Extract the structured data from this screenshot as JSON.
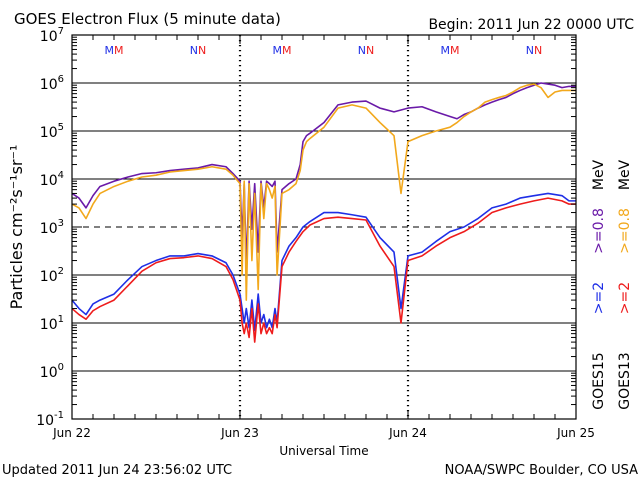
{
  "chart_data": {
    "type": "line",
    "title": "GOES Electron Flux (5 minute data)",
    "begin": "Begin: 2011 Jun 22 0000 UTC",
    "xlabel": "Universal Time",
    "ylabel": "Particles cm⁻²s⁻¹sr⁻¹",
    "yscale": "log",
    "ylim": [
      0.1,
      10000000
    ],
    "y_ticks": [
      {
        "value": 0.1,
        "base": "10",
        "exp": "-1"
      },
      {
        "value": 1,
        "base": "10",
        "exp": "0"
      },
      {
        "value": 10,
        "base": "10",
        "exp": "1"
      },
      {
        "value": 100,
        "base": "10",
        "exp": "2"
      },
      {
        "value": 1000,
        "base": "10",
        "exp": "3"
      },
      {
        "value": 10000,
        "base": "10",
        "exp": "4"
      },
      {
        "value": 100000,
        "base": "10",
        "exp": "5"
      },
      {
        "value": 1000000,
        "base": "10",
        "exp": "6"
      },
      {
        "value": 10000000,
        "base": "10",
        "exp": "7"
      }
    ],
    "xlim": [
      "2011-06-22 00:00",
      "2011-06-25 00:00"
    ],
    "x_ticks": [
      {
        "t": "2011-06-22 00:00",
        "label": "Jun 22"
      },
      {
        "t": "2011-06-23 00:00",
        "label": "Jun 23"
      },
      {
        "t": "2011-06-24 00:00",
        "label": "Jun 24"
      },
      {
        "t": "2011-06-25 00:00",
        "label": "Jun 25"
      }
    ],
    "threshold_line": 1000,
    "markers": [
      {
        "t": "2011-06-22 06:00",
        "label": "MM"
      },
      {
        "t": "2011-06-22 18:00",
        "label": "NN"
      },
      {
        "t": "2011-06-23 06:00",
        "label": "MM"
      },
      {
        "t": "2011-06-23 18:00",
        "label": "NN"
      },
      {
        "t": "2011-06-24 06:00",
        "label": "MM"
      },
      {
        "t": "2011-06-24 18:00",
        "label": "NN"
      }
    ],
    "legend": {
      "unit": "MeV",
      "labels": [
        ">=2",
        ">=2",
        ">=0.8",
        ">=0.8"
      ],
      "satellites": [
        "GOES15",
        "GOES13"
      ]
    },
    "colors": {
      "goes15_ge2": "#1f2fe6",
      "goes13_ge2": "#ee1c1c",
      "goes15_ge08": "#6a1aa8",
      "goes13_ge08": "#f2a81c",
      "marker_blue": "#1f2fe6",
      "marker_red": "#ee1c1c"
    },
    "series": [
      {
        "key": "goes15_ge08",
        "hours": [
          0,
          1,
          2,
          3,
          4,
          6,
          8,
          10,
          12,
          14,
          16,
          18,
          20,
          22,
          23,
          24,
          24.3,
          24.6,
          24.9,
          25.3,
          25.7,
          26.1,
          26.6,
          27,
          27.4,
          27.8,
          28.2,
          28.6,
          29,
          29.3,
          30,
          31,
          32,
          32.6,
          33,
          33.5,
          34,
          36,
          38,
          40,
          42,
          44,
          46,
          48,
          50,
          52,
          54,
          55,
          56,
          57,
          58,
          59,
          60,
          61,
          62,
          63,
          64,
          65,
          66,
          67,
          68,
          69,
          70,
          71,
          72
        ],
        "values": [
          5000,
          4000,
          2500,
          4500,
          7000,
          9000,
          11000,
          13000,
          13500,
          15000,
          16000,
          17000,
          20000,
          18000,
          13000,
          9000,
          600,
          8000,
          150,
          9000,
          900,
          8000,
          300,
          9000,
          2500,
          9000,
          8000,
          7000,
          9000,
          300,
          6000,
          8000,
          10000,
          20000,
          60000,
          80000,
          90000,
          150000,
          350000,
          400000,
          420000,
          300000,
          250000,
          300000,
          320000,
          250000,
          200000,
          180000,
          220000,
          250000,
          300000,
          350000,
          400000,
          450000,
          500000,
          600000,
          700000,
          800000,
          900000,
          1000000,
          950000,
          900000,
          800000,
          850000,
          850000
        ]
      },
      {
        "key": "goes13_ge08",
        "hours": [
          0,
          1,
          2,
          3,
          4,
          6,
          8,
          10,
          12,
          14,
          16,
          18,
          20,
          22,
          23,
          24,
          24.3,
          24.6,
          24.9,
          25.3,
          25.7,
          26.1,
          26.6,
          27,
          27.4,
          27.8,
          28.2,
          28.6,
          29,
          29.3,
          30,
          31,
          32,
          32.6,
          33,
          33.5,
          34,
          36,
          38,
          40,
          42,
          44,
          46,
          47,
          48,
          50,
          52,
          54,
          55,
          56,
          57,
          58,
          59,
          60,
          61,
          62,
          63,
          64,
          65,
          66,
          67,
          68,
          69,
          70,
          71,
          72
        ],
        "values": [
          3000,
          2500,
          1500,
          3000,
          5000,
          7000,
          9000,
          11000,
          12000,
          14000,
          15000,
          16000,
          18000,
          16000,
          12000,
          8000,
          100,
          9000,
          30,
          8000,
          200,
          5000,
          50,
          8000,
          1500,
          8000,
          6000,
          4000,
          7000,
          100,
          5000,
          6000,
          8000,
          15000,
          40000,
          60000,
          70000,
          120000,
          300000,
          350000,
          300000,
          150000,
          80000,
          5000,
          60000,
          80000,
          100000,
          120000,
          150000,
          200000,
          250000,
          300000,
          400000,
          450000,
          500000,
          550000,
          650000,
          800000,
          900000,
          950000,
          800000,
          500000,
          650000,
          700000,
          700000,
          700000
        ]
      },
      {
        "key": "goes15_ge2",
        "hours": [
          0,
          1,
          2,
          3,
          4,
          6,
          8,
          10,
          12,
          14,
          16,
          18,
          20,
          22,
          23,
          24,
          24.3,
          24.6,
          24.9,
          25.3,
          25.7,
          26.1,
          26.6,
          27,
          27.4,
          27.8,
          28.2,
          28.6,
          29,
          29.3,
          30,
          31,
          32,
          33,
          34,
          36,
          38,
          40,
          42,
          44,
          46,
          47,
          48,
          50,
          52,
          54,
          56,
          58,
          60,
          62,
          64,
          66,
          68,
          70,
          71,
          72
        ],
        "values": [
          30,
          20,
          15,
          25,
          30,
          40,
          80,
          150,
          200,
          250,
          250,
          280,
          250,
          180,
          100,
          40,
          20,
          10,
          20,
          8,
          30,
          7,
          40,
          10,
          15,
          8,
          12,
          8,
          20,
          10,
          200,
          400,
          600,
          1000,
          1300,
          2000,
          2000,
          1800,
          1600,
          600,
          300,
          20,
          250,
          300,
          500,
          800,
          1000,
          1500,
          2500,
          3000,
          4000,
          4500,
          5000,
          4500,
          3500,
          3500
        ]
      },
      {
        "key": "goes13_ge2",
        "hours": [
          0,
          1,
          2,
          3,
          4,
          6,
          8,
          10,
          12,
          14,
          16,
          18,
          20,
          22,
          23,
          24,
          24.3,
          24.6,
          24.9,
          25.3,
          25.7,
          26.1,
          26.6,
          27,
          27.4,
          27.8,
          28.2,
          28.6,
          29,
          29.3,
          30,
          31,
          32,
          33,
          34,
          36,
          38,
          40,
          42,
          44,
          46,
          47,
          48,
          50,
          52,
          54,
          56,
          58,
          60,
          62,
          64,
          66,
          68,
          70,
          71,
          72
        ],
        "values": [
          20,
          15,
          12,
          18,
          22,
          30,
          60,
          120,
          180,
          220,
          230,
          250,
          220,
          150,
          80,
          30,
          10,
          6,
          10,
          5,
          20,
          4,
          25,
          6,
          10,
          6,
          8,
          6,
          15,
          8,
          150,
          300,
          500,
          800,
          1100,
          1500,
          1600,
          1500,
          1400,
          400,
          150,
          10,
          200,
          250,
          400,
          600,
          800,
          1200,
          2000,
          2500,
          3000,
          3500,
          4000,
          3500,
          3000,
          3000
        ]
      }
    ]
  },
  "footer": {
    "updated": "Updated 2011 Jun 24 23:56:02 UTC",
    "source": "NOAA/SWPC Boulder, CO USA"
  }
}
